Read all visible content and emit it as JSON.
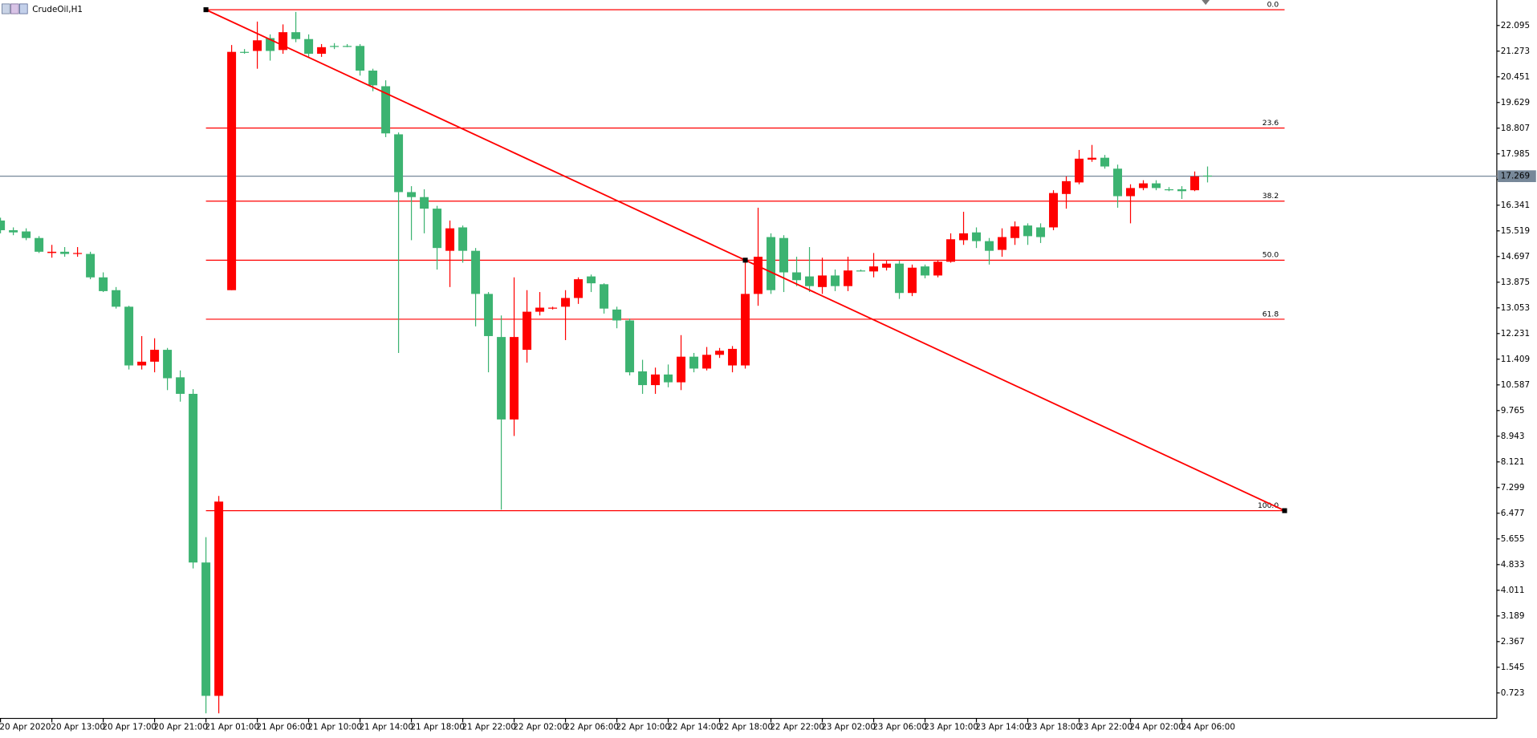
{
  "chart_data": {
    "type": "candlestick",
    "title": "CrudeOil,H1",
    "categories": [
      "20 Apr 2020",
      null,
      null,
      null,
      "20 Apr 13:00",
      null,
      null,
      null,
      "20 Apr 17:00",
      null,
      null,
      null,
      "20 Apr 21:00",
      null,
      null,
      null,
      "21 Apr 01:00",
      null,
      null,
      null,
      "21 Apr 06:00",
      null,
      null,
      null,
      "21 Apr 10:00",
      null,
      null,
      null,
      "21 Apr 14:00",
      null,
      null,
      null,
      "21 Apr 18:00",
      null,
      null,
      null,
      "21 Apr 22:00",
      null,
      null,
      null,
      "22 Apr 02:00",
      null,
      null,
      null,
      "22 Apr 06:00",
      null,
      null,
      null,
      "22 Apr 10:00",
      null,
      null,
      null,
      "22 Apr 14:00",
      null,
      null,
      null,
      "22 Apr 18:00",
      null,
      null,
      null,
      "22 Apr 22:00",
      null,
      null,
      null,
      "23 Apr 02:00",
      null,
      null,
      null,
      "23 Apr 06:00",
      null,
      null,
      null,
      "23 Apr 10:00",
      null,
      null,
      null,
      "23 Apr 14:00",
      null,
      null,
      null,
      "23 Apr 18:00",
      null,
      null,
      null,
      "23 Apr 22:00",
      null,
      null,
      null,
      "24 Apr 02:00",
      null,
      null,
      null,
      "24 Apr 06:00",
      null,
      null
    ],
    "open": [
      15.85,
      15.54,
      15.5,
      15.29,
      14.81,
      14.85,
      14.78,
      14.78,
      14.03,
      13.62,
      13.09,
      11.21,
      11.33,
      11.71,
      10.83,
      10.3,
      4.9,
      0.63,
      13.62,
      21.25,
      21.28,
      21.69,
      21.31,
      21.88,
      21.66,
      21.19,
      21.44,
      21.44,
      21.44,
      20.65,
      20.15,
      18.61,
      16.76,
      16.6,
      16.23,
      14.88,
      15.63,
      14.88,
      13.5,
      12.12,
      9.48,
      11.71,
      12.93,
      13.03,
      13.09,
      13.37,
      14.06,
      13.81,
      13.0,
      12.65,
      11.02,
      10.58,
      10.92,
      10.67,
      11.49,
      11.11,
      11.55,
      11.21,
      11.21,
      13.5,
      15.32,
      15.29,
      14.19,
      14.06,
      13.72,
      14.09,
      13.75,
      14.25,
      14.22,
      14.34,
      14.47,
      13.53,
      14.38,
      14.09,
      14.53,
      15.22,
      15.47,
      15.19,
      14.91,
      15.29,
      15.69,
      15.63,
      15.63,
      16.7,
      17.07,
      17.8,
      17.86,
      17.51,
      16.63,
      16.89,
      17.04,
      16.85,
      16.85,
      16.82,
      17.29
    ],
    "high": [
      15.94,
      15.63,
      15.6,
      15.35,
      15.07,
      15.0,
      15.0,
      14.85,
      14.19,
      13.72,
      13.12,
      12.15,
      12.08,
      11.77,
      11.05,
      10.45,
      5.71,
      7.03,
      21.47,
      21.34,
      22.22,
      21.81,
      22.13,
      22.53,
      21.81,
      21.5,
      21.53,
      21.5,
      21.5,
      20.71,
      20.34,
      18.67,
      16.95,
      16.85,
      16.32,
      15.85,
      15.69,
      14.97,
      13.56,
      12.81,
      14.03,
      13.62,
      13.56,
      13.09,
      13.62,
      14.03,
      14.12,
      13.84,
      13.09,
      12.71,
      11.39,
      11.14,
      11.24,
      12.18,
      11.61,
      11.8,
      11.77,
      11.83,
      14.59,
      16.26,
      15.44,
      15.38,
      14.69,
      15.0,
      14.66,
      14.28,
      14.69,
      14.28,
      14.81,
      14.56,
      14.56,
      14.44,
      14.44,
      14.59,
      15.44,
      16.13,
      15.63,
      15.29,
      15.6,
      15.82,
      15.76,
      15.76,
      16.82,
      17.26,
      18.11,
      18.27,
      17.95,
      17.64,
      17.01,
      17.14,
      17.14,
      16.92,
      16.95,
      17.42,
      17.58
    ],
    "low": [
      15.44,
      15.38,
      15.22,
      14.81,
      14.66,
      14.69,
      14.69,
      13.97,
      13.56,
      13.03,
      11.08,
      11.08,
      10.99,
      10.42,
      10.05,
      4.71,
      0.07,
      0.07,
      13.62,
      21.19,
      20.71,
      20.97,
      21.19,
      21.56,
      21.09,
      21.09,
      21.34,
      21.4,
      20.49,
      19.99,
      18.52,
      11.61,
      15.22,
      15.44,
      14.28,
      13.72,
      14.5,
      12.46,
      10.99,
      6.59,
      8.95,
      11.3,
      12.81,
      13.0,
      12.02,
      13.18,
      13.56,
      12.87,
      12.4,
      10.89,
      10.3,
      10.3,
      10.51,
      10.42,
      10.99,
      11.05,
      11.45,
      10.99,
      11.11,
      13.12,
      13.5,
      13.56,
      13.75,
      13.56,
      13.5,
      13.59,
      13.59,
      14.22,
      14.03,
      14.25,
      13.34,
      13.43,
      14.0,
      14.03,
      14.5,
      15.07,
      14.97,
      14.44,
      14.69,
      15.07,
      15.07,
      15.13,
      15.54,
      16.23,
      17.01,
      17.73,
      17.51,
      16.26,
      15.76,
      16.82,
      16.82,
      16.79,
      16.54,
      16.79,
      17.07
    ],
    "close": [
      15.54,
      15.47,
      15.29,
      14.85,
      14.85,
      14.78,
      14.81,
      14.03,
      13.59,
      13.09,
      11.21,
      11.33,
      11.71,
      10.8,
      10.3,
      4.9,
      0.63,
      6.85,
      21.25,
      21.25,
      21.62,
      21.28,
      21.88,
      21.66,
      21.19,
      21.4,
      21.44,
      21.44,
      20.65,
      20.18,
      18.64,
      16.76,
      16.6,
      16.23,
      14.97,
      15.6,
      14.88,
      13.5,
      12.15,
      9.48,
      12.12,
      12.93,
      13.06,
      13.06,
      13.37,
      13.97,
      13.84,
      13.03,
      12.65,
      10.99,
      10.58,
      10.92,
      10.67,
      11.49,
      11.11,
      11.55,
      11.68,
      11.74,
      13.5,
      14.69,
      13.62,
      14.19,
      13.94,
      13.75,
      14.09,
      13.75,
      14.25,
      14.25,
      14.38,
      14.47,
      13.53,
      14.34,
      14.09,
      14.53,
      15.25,
      15.44,
      15.19,
      14.88,
      15.32,
      15.66,
      15.35,
      15.32,
      16.73,
      17.11,
      17.83,
      17.86,
      17.58,
      16.63,
      16.89,
      17.04,
      16.89,
      16.85,
      16.79,
      17.26,
      17.27
    ],
    "up_color": "#ff0000",
    "down_color": "#3cb371",
    "ylim": [
      -0.092,
      22.911
    ],
    "yticks": [
      0.723,
      1.545,
      2.367,
      3.189,
      4.011,
      4.833,
      5.655,
      6.477,
      7.299,
      8.121,
      8.943,
      9.765,
      10.587,
      11.409,
      12.231,
      13.053,
      13.875,
      14.697,
      15.519,
      16.341,
      17.163,
      17.985,
      18.807,
      19.629,
      20.451,
      21.273,
      22.095
    ],
    "current_price": 17.269,
    "current_price_color": "#778899",
    "fibonacci": {
      "color": "#ff0000",
      "levels": [
        "0.0",
        "23.6",
        "38.2",
        "50.0",
        "61.8",
        "100.0"
      ],
      "prices": [
        22.6,
        18.81,
        16.47,
        14.58,
        12.69,
        6.56
      ],
      "x": [
        16,
        100
      ]
    },
    "trendline": {
      "color": "#ff0000",
      "x": [
        16,
        58,
        100
      ],
      "y": [
        22.6,
        14.58,
        6.56
      ]
    }
  }
}
